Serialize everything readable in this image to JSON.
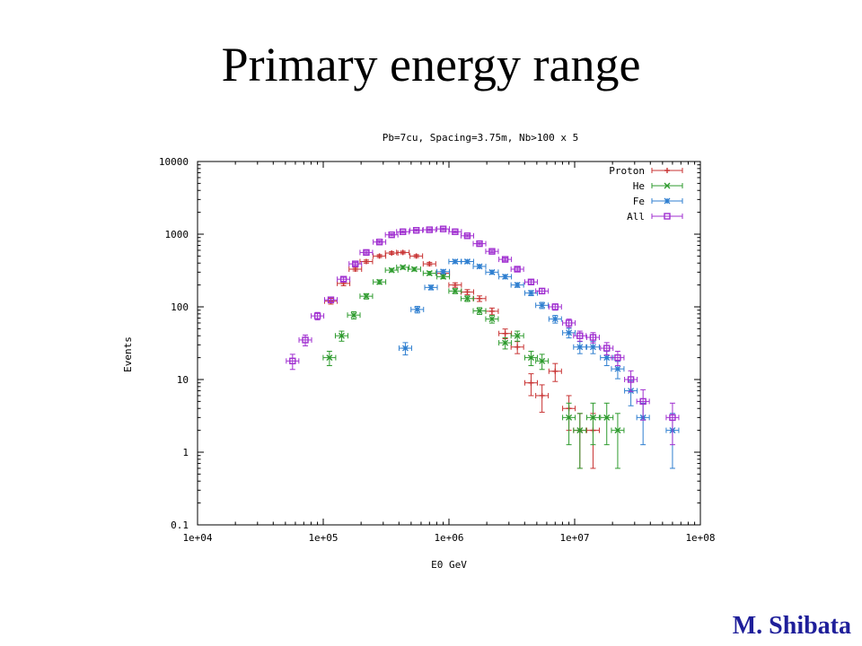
{
  "slide": {
    "title": "Primary energy range",
    "author": "M. Shibata",
    "author_color": "#1f1f9a"
  },
  "chart_data": {
    "type": "scatter",
    "title": "Pb=7cu, Spacing=3.75m, Nb>100 x 5",
    "xlabel": "E0 GeV",
    "ylabel": "Events",
    "xscale": "log",
    "yscale": "log",
    "xlim": [
      10000,
      100000000
    ],
    "ylim": [
      0.1,
      10000
    ],
    "xticks": [
      "1e+04",
      "1e+05",
      "1e+06",
      "1e+07",
      "1e+08"
    ],
    "yticks": [
      "0.1",
      "1",
      "10",
      "100",
      "1000",
      "10000"
    ],
    "legend_position": "top-right",
    "series": [
      {
        "name": "Proton",
        "color": "#c83232",
        "marker": "plus",
        "points": [
          [
            115000,
            120
          ],
          [
            145000,
            210
          ],
          [
            180000,
            330
          ],
          [
            220000,
            420
          ],
          [
            280000,
            500
          ],
          [
            350000,
            550
          ],
          [
            430000,
            560
          ],
          [
            550000,
            500
          ],
          [
            700000,
            390
          ],
          [
            900000,
            290
          ],
          [
            1120000,
            200
          ],
          [
            1400000,
            160
          ],
          [
            1750000,
            130
          ],
          [
            2200000,
            87
          ],
          [
            2800000,
            43
          ],
          [
            3500000,
            28
          ],
          [
            4500000,
            9
          ],
          [
            5500000,
            6
          ],
          [
            7000000,
            13
          ],
          [
            9000000,
            4
          ],
          [
            11000000,
            2
          ],
          [
            14000000,
            2
          ]
        ]
      },
      {
        "name": "He",
        "color": "#2e9b2e",
        "marker": "x",
        "points": [
          [
            112000,
            20
          ],
          [
            140000,
            40
          ],
          [
            175000,
            77
          ],
          [
            220000,
            140
          ],
          [
            280000,
            220
          ],
          [
            350000,
            320
          ],
          [
            430000,
            350
          ],
          [
            530000,
            330
          ],
          [
            700000,
            290
          ],
          [
            900000,
            260
          ],
          [
            1120000,
            165
          ],
          [
            1400000,
            130
          ],
          [
            1750000,
            88
          ],
          [
            2200000,
            68
          ],
          [
            2800000,
            32
          ],
          [
            3500000,
            40
          ],
          [
            4500000,
            20
          ],
          [
            5500000,
            18
          ],
          [
            9000000,
            3
          ],
          [
            11000000,
            2
          ],
          [
            14000000,
            3
          ],
          [
            18000000,
            3
          ],
          [
            22000000,
            2
          ]
        ]
      },
      {
        "name": "Fe",
        "color": "#2f7fd0",
        "marker": "star",
        "points": [
          [
            450000,
            27
          ],
          [
            560000,
            92
          ],
          [
            720000,
            185
          ],
          [
            900000,
            305
          ],
          [
            1120000,
            420
          ],
          [
            1400000,
            420
          ],
          [
            1750000,
            360
          ],
          [
            2200000,
            300
          ],
          [
            2800000,
            260
          ],
          [
            3500000,
            200
          ],
          [
            4500000,
            155
          ],
          [
            5500000,
            105
          ],
          [
            7000000,
            68
          ],
          [
            9000000,
            44
          ],
          [
            11000000,
            28
          ],
          [
            14000000,
            28
          ],
          [
            18000000,
            20
          ],
          [
            22000000,
            14
          ],
          [
            28000000,
            7
          ],
          [
            35000000,
            3
          ],
          [
            60000000,
            2
          ]
        ]
      },
      {
        "name": "All",
        "color": "#a02fd0",
        "marker": "square",
        "points": [
          [
            57000,
            18
          ],
          [
            72000,
            35
          ],
          [
            90000,
            75
          ],
          [
            115000,
            125
          ],
          [
            145000,
            240
          ],
          [
            180000,
            390
          ],
          [
            220000,
            560
          ],
          [
            280000,
            780
          ],
          [
            350000,
            980
          ],
          [
            430000,
            1080
          ],
          [
            550000,
            1130
          ],
          [
            700000,
            1150
          ],
          [
            900000,
            1180
          ],
          [
            1120000,
            1080
          ],
          [
            1400000,
            950
          ],
          [
            1750000,
            740
          ],
          [
            2200000,
            580
          ],
          [
            2800000,
            450
          ],
          [
            3500000,
            330
          ],
          [
            4500000,
            220
          ],
          [
            5500000,
            165
          ],
          [
            7000000,
            100
          ],
          [
            9000000,
            60
          ],
          [
            11000000,
            40
          ],
          [
            14000000,
            38
          ],
          [
            18000000,
            27
          ],
          [
            22000000,
            20
          ],
          [
            28000000,
            10
          ],
          [
            35000000,
            5
          ],
          [
            60000000,
            3
          ]
        ]
      }
    ]
  }
}
